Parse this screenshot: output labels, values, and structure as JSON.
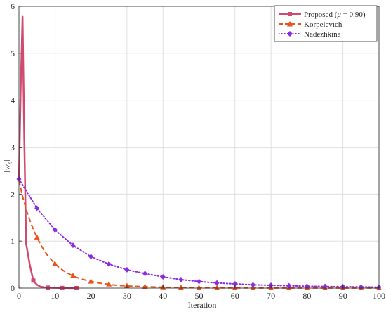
{
  "chart_data": {
    "type": "line",
    "xlabel": "Iteration",
    "ylabel": "‖w_n‖",
    "xlim": [
      0,
      100
    ],
    "ylim": [
      0,
      6
    ],
    "xticks": [
      0,
      10,
      20,
      30,
      40,
      50,
      60,
      70,
      80,
      90,
      100
    ],
    "yticks": [
      0,
      1,
      2,
      3,
      4,
      5,
      6
    ],
    "grid": true,
    "legend_position": "top-right",
    "series": [
      {
        "name": "Proposed (μ = 0.90)",
        "color": "#d0496f",
        "line_style": "solid",
        "marker": "square",
        "x": [
          0,
          0.5,
          1,
          1.5,
          2,
          3,
          4,
          5,
          6,
          7,
          8,
          10,
          12,
          14,
          16
        ],
        "y": [
          2.3,
          4.3,
          5.78,
          3.1,
          0.95,
          0.5,
          0.16,
          0.07,
          0.03,
          0.015,
          0.01,
          0.005,
          0.003,
          0.002,
          0.001
        ],
        "marker_x": [
          4,
          8,
          12,
          16
        ],
        "line_width": 2.5
      },
      {
        "name": "Korpelevich",
        "color": "#e8541c",
        "line_style": "dashed",
        "marker": "triangle",
        "x": [
          0,
          1,
          2,
          3,
          4,
          5,
          6,
          7,
          8,
          9,
          10,
          11,
          12,
          13,
          14,
          15,
          16,
          17,
          18,
          19,
          20,
          22,
          24,
          25,
          26,
          28,
          30,
          32,
          34,
          35,
          36,
          38,
          40,
          42,
          44,
          45,
          46,
          48,
          50,
          55,
          60,
          65,
          70,
          75,
          80,
          85,
          90,
          95,
          100
        ],
        "y": [
          2.3,
          1.95,
          1.68,
          1.45,
          1.25,
          1.08,
          0.93,
          0.8,
          0.69,
          0.6,
          0.52,
          0.45,
          0.39,
          0.34,
          0.3,
          0.26,
          0.23,
          0.2,
          0.18,
          0.16,
          0.14,
          0.11,
          0.09,
          0.08,
          0.07,
          0.055,
          0.045,
          0.038,
          0.032,
          0.03,
          0.027,
          0.022,
          0.018,
          0.015,
          0.012,
          0.011,
          0.01,
          0.008,
          0.007,
          0.005,
          0.004,
          0.003,
          0.002,
          0.002,
          0.001,
          0.001,
          0.001,
          0.001,
          0.001
        ],
        "marker_x": [
          5,
          10,
          15,
          20,
          25,
          30,
          35,
          40,
          45,
          50,
          55,
          60,
          65,
          70,
          75,
          80,
          85,
          90,
          95,
          100
        ],
        "line_width": 2
      },
      {
        "name": "Nadezhkina",
        "color": "#8a2be2",
        "line_style": "dotted",
        "marker": "diamond",
        "x": [
          0,
          5,
          10,
          15,
          20,
          25,
          30,
          35,
          40,
          45,
          50,
          55,
          60,
          65,
          70,
          75,
          80,
          85,
          90,
          95,
          100
        ],
        "y": [
          2.32,
          1.7,
          1.24,
          0.91,
          0.67,
          0.51,
          0.39,
          0.31,
          0.24,
          0.18,
          0.14,
          0.11,
          0.09,
          0.07,
          0.06,
          0.05,
          0.04,
          0.035,
          0.03,
          0.025,
          0.02
        ],
        "marker_x": [
          0,
          5,
          10,
          15,
          20,
          25,
          30,
          35,
          40,
          45,
          50,
          55,
          60,
          65,
          70,
          75,
          80,
          85,
          90,
          95,
          100
        ],
        "line_width": 2
      }
    ]
  },
  "legend": {
    "proposed": "Proposed (μ = 0.90)",
    "korpelevich": "Korpelevich",
    "nadezhkina": "Nadezhkina"
  }
}
